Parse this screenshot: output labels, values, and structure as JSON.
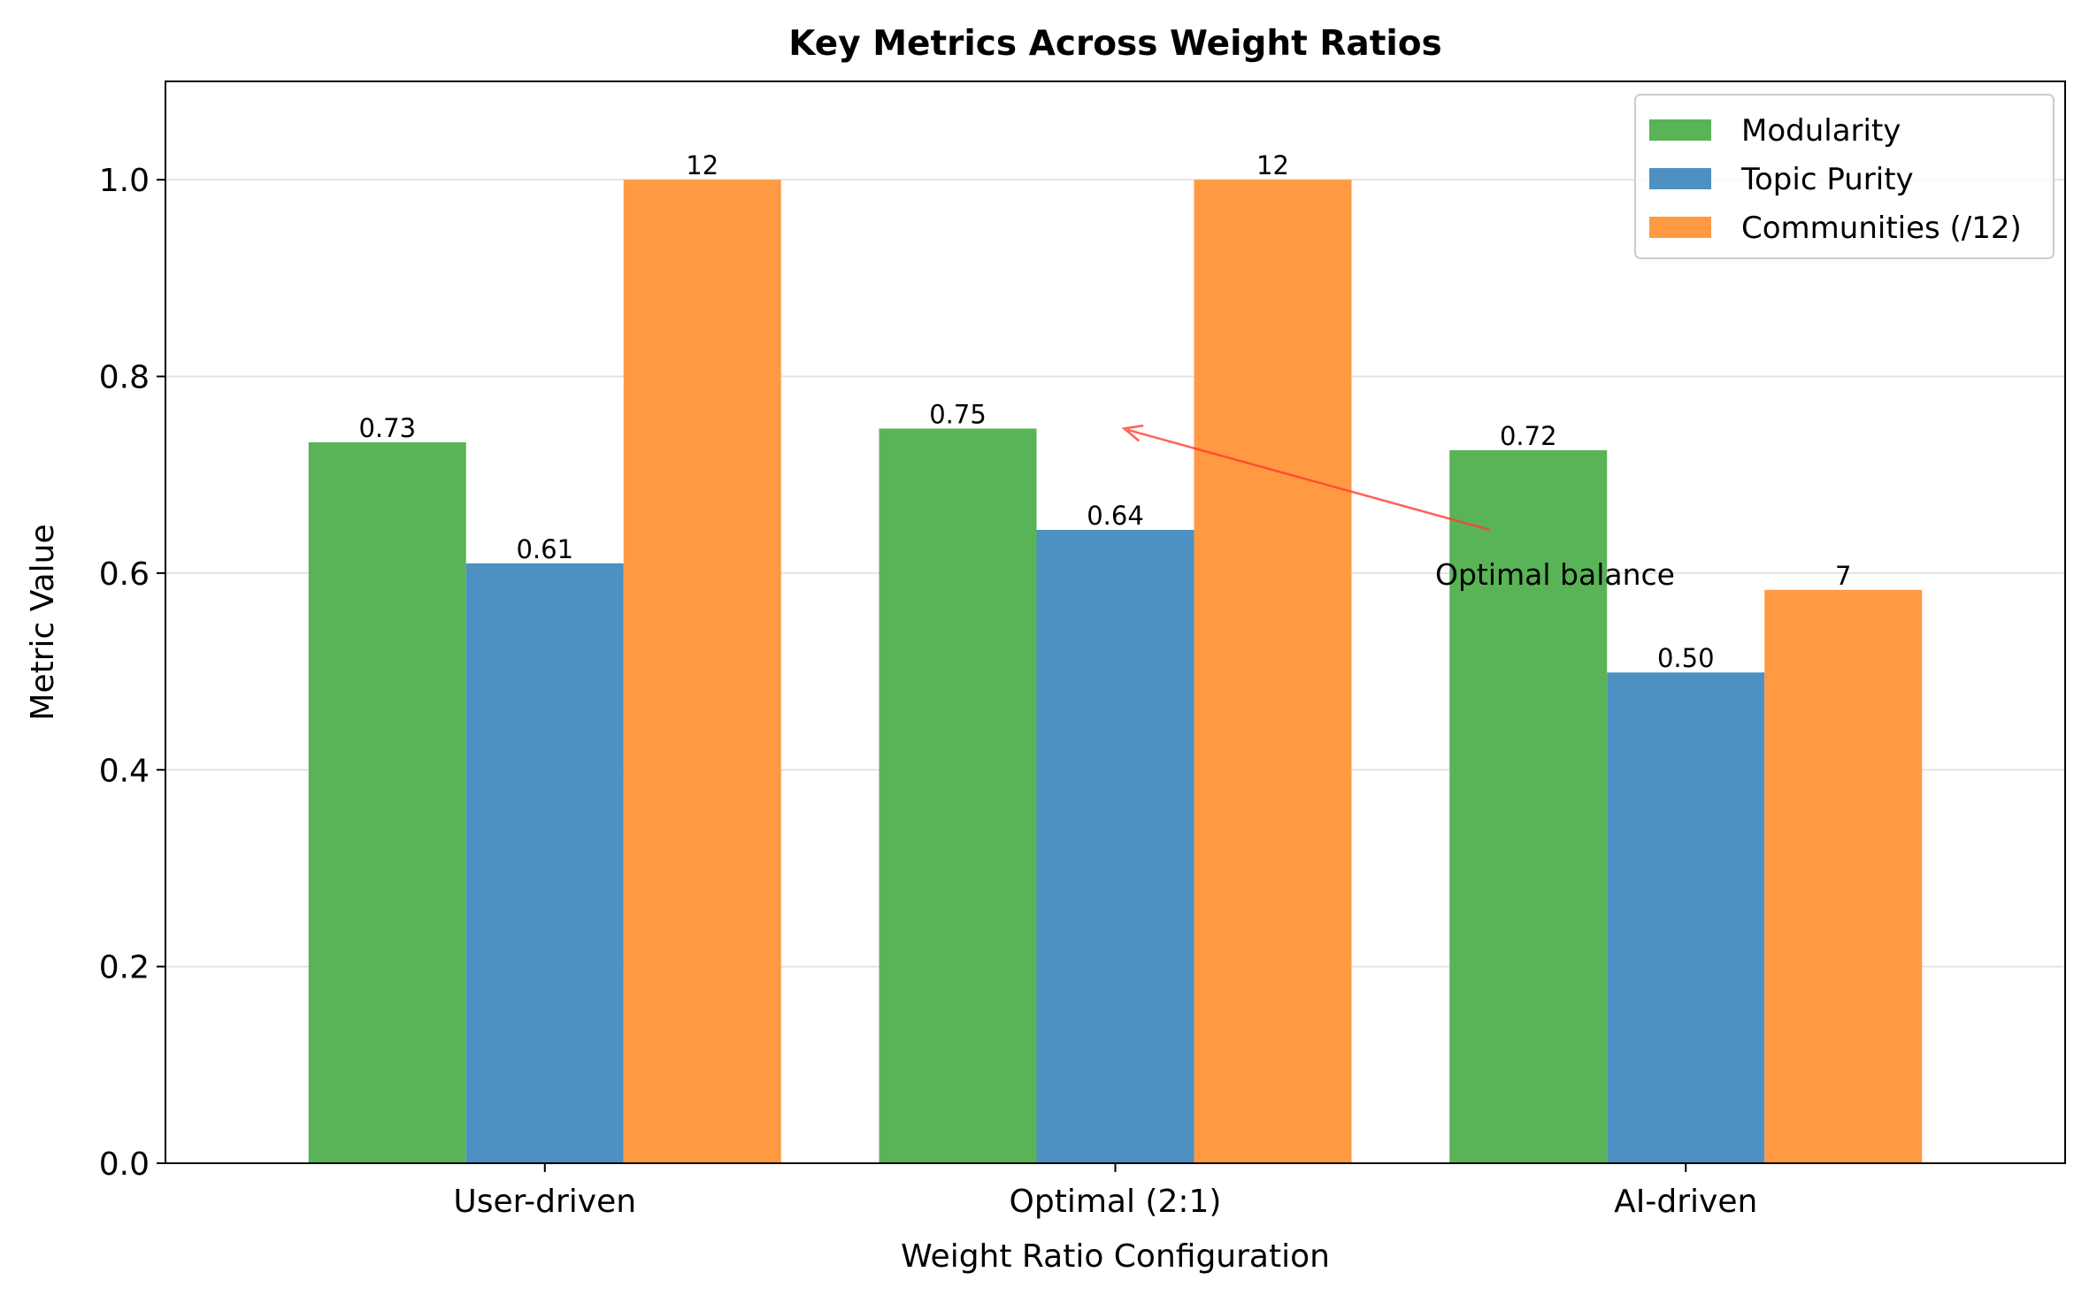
{
  "chart_data": {
    "type": "bar",
    "title": "Key Metrics Across Weight Ratios",
    "xlabel": "Weight Ratio Configuration",
    "ylabel": "Metric Value",
    "categories": [
      "User-driven",
      "Optimal (2:1)",
      "AI-driven"
    ],
    "series": [
      {
        "name": "Modularity",
        "color": "#59b357",
        "values": [
          0.733,
          0.747,
          0.725
        ],
        "labels": [
          "0.73",
          "0.75",
          "0.72"
        ]
      },
      {
        "name": "Topic Purity",
        "color": "#4c91c2",
        "values": [
          0.61,
          0.644,
          0.499
        ],
        "labels": [
          "0.61",
          "0.64",
          "0.50"
        ]
      },
      {
        "name": "Communities (/12)",
        "color": "#ff9a42",
        "values": [
          1.0,
          1.0,
          0.583
        ],
        "labels": [
          "12",
          "12",
          "7"
        ]
      }
    ],
    "ylim": [
      0,
      1.1
    ],
    "yticks": [
      0.0,
      0.2,
      0.4,
      0.6,
      0.8,
      1.0
    ],
    "ytick_labels": [
      "0.0",
      "0.2",
      "0.4",
      "0.6",
      "0.8",
      "1.0"
    ],
    "grid": "y",
    "legend_position": "top-right",
    "annotation": {
      "text": "Optimal balance",
      "arrow_color": "#ff3b30",
      "target_category": "Optimal (2:1)",
      "target_value": 0.747,
      "text_value": 0.6
    }
  }
}
